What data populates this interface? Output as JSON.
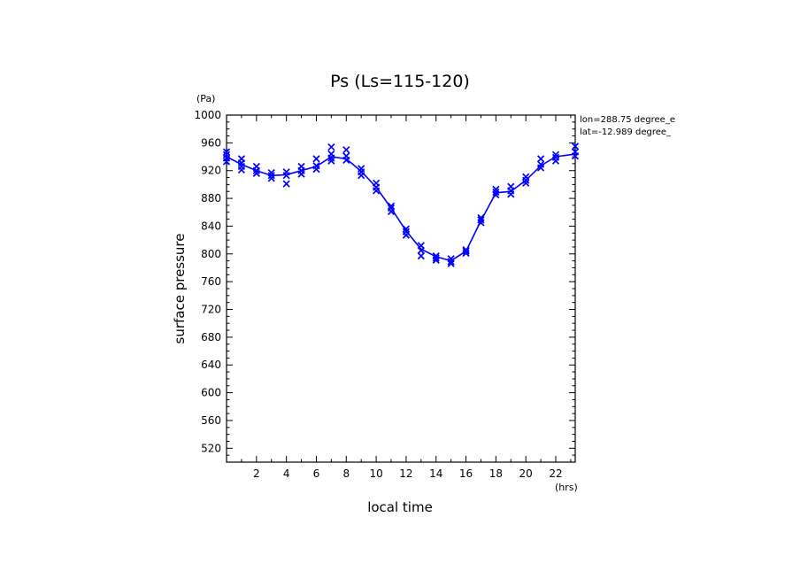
{
  "chart_data": {
    "type": "line",
    "title": "Ps (Ls=115-120)",
    "xlabel": "local time",
    "ylabel": "surface pressure",
    "x_unit": "(hrs)",
    "y_unit": "(Pa)",
    "xlim": [
      0,
      23.3
    ],
    "ylim": [
      500,
      1000
    ],
    "x_ticks": [
      2,
      4,
      6,
      8,
      10,
      12,
      14,
      16,
      18,
      20,
      22
    ],
    "y_ticks": [
      520,
      560,
      600,
      640,
      680,
      720,
      760,
      800,
      840,
      880,
      920,
      960,
      1000
    ],
    "annotations": [
      "lon=288.75 degree_e",
      "lat=-12.989 degree_"
    ],
    "colors": {
      "series": "#0000ff",
      "axes": "#000000"
    },
    "grid": false,
    "series": [
      {
        "style": "line",
        "x": [
          0,
          1,
          2,
          3,
          4,
          5,
          6,
          7,
          8,
          9,
          10,
          11,
          12,
          13,
          14,
          15,
          16,
          17,
          18,
          19,
          20,
          21,
          22,
          23.3
        ],
        "y": [
          940,
          929,
          920,
          913,
          914,
          920,
          926,
          940,
          937,
          919,
          896,
          866,
          833,
          807,
          796,
          790,
          804,
          848,
          888,
          890,
          906,
          927,
          940,
          944
        ]
      },
      {
        "style": "markers",
        "marker": "x",
        "points": [
          [
            0,
            947
          ],
          [
            0,
            943
          ],
          [
            0,
            938
          ],
          [
            0,
            933
          ],
          [
            1,
            937
          ],
          [
            1,
            931
          ],
          [
            1,
            926
          ],
          [
            1,
            921
          ],
          [
            2,
            926
          ],
          [
            2,
            920
          ],
          [
            2,
            916
          ],
          [
            3,
            917
          ],
          [
            3,
            913
          ],
          [
            3,
            909
          ],
          [
            4,
            918
          ],
          [
            4,
            913
          ],
          [
            4,
            901
          ],
          [
            5,
            926
          ],
          [
            5,
            920
          ],
          [
            5,
            915
          ],
          [
            6,
            937
          ],
          [
            6,
            927
          ],
          [
            6,
            922
          ],
          [
            7,
            954
          ],
          [
            7,
            944
          ],
          [
            7,
            938
          ],
          [
            7,
            934
          ],
          [
            8,
            950
          ],
          [
            8,
            941
          ],
          [
            8,
            935
          ],
          [
            9,
            923
          ],
          [
            9,
            918
          ],
          [
            9,
            913
          ],
          [
            10,
            902
          ],
          [
            10,
            896
          ],
          [
            10,
            891
          ],
          [
            11,
            869
          ],
          [
            11,
            866
          ],
          [
            11,
            861
          ],
          [
            12,
            836
          ],
          [
            12,
            832
          ],
          [
            12,
            827
          ],
          [
            13,
            812
          ],
          [
            13,
            805
          ],
          [
            13,
            797
          ],
          [
            14,
            797
          ],
          [
            14,
            794
          ],
          [
            14,
            791
          ],
          [
            15,
            793
          ],
          [
            15,
            789
          ],
          [
            15,
            786
          ],
          [
            16,
            806
          ],
          [
            16,
            804
          ],
          [
            16,
            801
          ],
          [
            17,
            852
          ],
          [
            17,
            849
          ],
          [
            17,
            845
          ],
          [
            18,
            893
          ],
          [
            18,
            889
          ],
          [
            18,
            885
          ],
          [
            19,
            897
          ],
          [
            19,
            891
          ],
          [
            19,
            886
          ],
          [
            20,
            911
          ],
          [
            20,
            906
          ],
          [
            20,
            902
          ],
          [
            21,
            937
          ],
          [
            21,
            929
          ],
          [
            21,
            924
          ],
          [
            22,
            943
          ],
          [
            22,
            939
          ],
          [
            22,
            934
          ],
          [
            23.3,
            955
          ],
          [
            23.3,
            947
          ],
          [
            23.3,
            941
          ]
        ]
      }
    ]
  }
}
